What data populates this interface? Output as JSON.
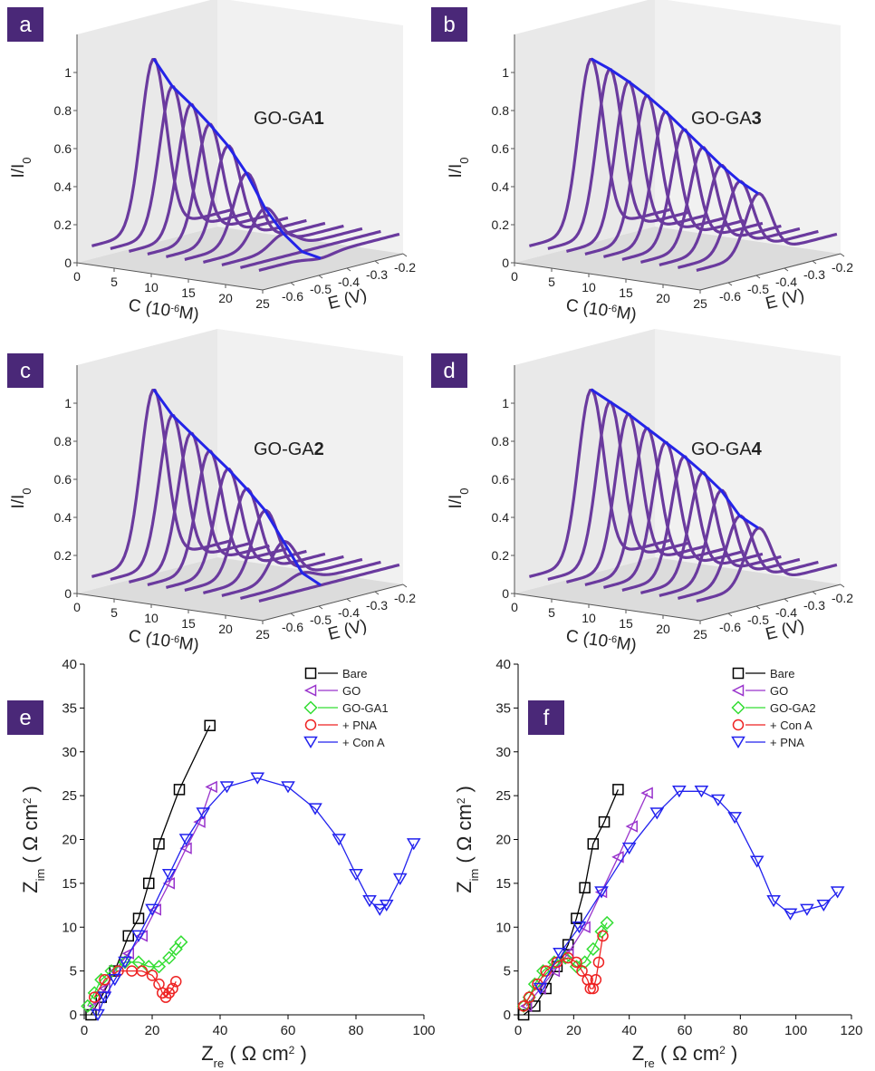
{
  "chart_data": [
    {
      "type": "waterfall3d",
      "panel": "a",
      "label": {
        "text": "GO-GA",
        "bold": "1"
      },
      "xlabel": {
        "text": "C (10",
        "sup": "-6",
        "end": "M)"
      },
      "ylabel": "E (V)",
      "zlabel": {
        "text": "I/I",
        "sub": "0"
      },
      "xlim": [
        0,
        25
      ],
      "xticks": [
        0,
        5,
        10,
        15,
        20,
        25
      ],
      "ylim": [
        -0.7,
        -0.2
      ],
      "yticks": [
        -0.6,
        -0.5,
        -0.4,
        -0.3,
        -0.2
      ],
      "zlim": [
        0,
        1.2
      ],
      "zticks": [
        0,
        0.2,
        0.4,
        0.6,
        0.8,
        1
      ],
      "envelope_color": "#2424e8",
      "series": [
        {
          "color": "#6a3a9e",
          "x": [
            2,
            4.5,
            7,
            9.5,
            12,
            14.5,
            17,
            19.5,
            22,
            24.5
          ],
          "values": [
            1,
            0.87,
            0.79,
            0.7,
            0.6,
            0.47,
            0.3,
            0.18,
            0.1,
            0.08
          ]
        }
      ]
    },
    {
      "type": "waterfall3d",
      "panel": "b",
      "label": {
        "text": "GO-GA",
        "bold": "3"
      },
      "xlabel": {
        "text": "C (10",
        "sup": "-6",
        "end": "M)"
      },
      "ylabel": "E (V)",
      "zlabel": {
        "text": "I/I",
        "sub": "0"
      },
      "xlim": [
        0,
        25
      ],
      "xticks": [
        0,
        5,
        10,
        15,
        20,
        25
      ],
      "ylim": [
        -0.7,
        -0.2
      ],
      "yticks": [
        -0.6,
        -0.5,
        -0.4,
        -0.3,
        -0.2
      ],
      "zlim": [
        0,
        1.2
      ],
      "zticks": [
        0,
        0.2,
        0.4,
        0.6,
        0.8,
        1
      ],
      "envelope_color": "#2424e8",
      "series": [
        {
          "color": "#6a3a9e",
          "x": [
            2,
            4.5,
            7,
            9.5,
            12,
            14.5,
            17,
            19.5,
            22,
            24.5
          ],
          "values": [
            1,
            0.96,
            0.91,
            0.85,
            0.78,
            0.7,
            0.62,
            0.54,
            0.47,
            0.42
          ]
        }
      ]
    },
    {
      "type": "waterfall3d",
      "panel": "c",
      "label": {
        "text": "GO-GA",
        "bold": "2"
      },
      "xlabel": {
        "text": "C (10",
        "sup": "-6",
        "end": "M)"
      },
      "ylabel": "E (V)",
      "zlabel": {
        "text": "I/I",
        "sub": "0"
      },
      "xlim": [
        0,
        25
      ],
      "xticks": [
        0,
        5,
        10,
        15,
        20,
        25
      ],
      "ylim": [
        -0.7,
        -0.2
      ],
      "yticks": [
        -0.6,
        -0.5,
        -0.4,
        -0.3,
        -0.2
      ],
      "zlim": [
        0,
        1.2
      ],
      "zticks": [
        0,
        0.2,
        0.4,
        0.6,
        0.8,
        1
      ],
      "envelope_color": "#2424e8",
      "series": [
        {
          "color": "#6a3a9e",
          "x": [
            2,
            4.5,
            7,
            9.5,
            12,
            14.5,
            17,
            19.5,
            22,
            24.5
          ],
          "values": [
            1,
            0.88,
            0.8,
            0.72,
            0.64,
            0.55,
            0.45,
            0.3,
            0.15,
            0.1
          ]
        }
      ]
    },
    {
      "type": "waterfall3d",
      "panel": "d",
      "label": {
        "text": "GO-GA",
        "bold": "4"
      },
      "xlabel": {
        "text": "C (10",
        "sup": "-6",
        "end": "M)"
      },
      "ylabel": "E (V)",
      "zlabel": {
        "text": "I/I",
        "sub": "0"
      },
      "xlim": [
        0,
        25
      ],
      "xticks": [
        0,
        5,
        10,
        15,
        20,
        25
      ],
      "ylim": [
        -0.7,
        -0.2
      ],
      "yticks": [
        -0.6,
        -0.5,
        -0.4,
        -0.3,
        -0.2
      ],
      "zlim": [
        0,
        1.2
      ],
      "zticks": [
        0,
        0.2,
        0.4,
        0.6,
        0.8,
        1
      ],
      "envelope_color": "#2424e8",
      "series": [
        {
          "color": "#6a3a9e",
          "x": [
            2,
            4.5,
            7,
            9.5,
            12,
            14.5,
            17,
            19.5,
            22,
            24.5
          ],
          "values": [
            1,
            0.95,
            0.9,
            0.84,
            0.78,
            0.72,
            0.65,
            0.57,
            0.45,
            0.4
          ]
        }
      ]
    },
    {
      "type": "scatter",
      "panel": "e",
      "xlabel": {
        "text": "Z",
        "sub": "re",
        "unit": " ( Ω cm",
        "sup": "2",
        "end": " )"
      },
      "ylabel": {
        "text": "Z",
        "sub": "im",
        "unit": " ( Ω cm",
        "sup": "2",
        "end": " )"
      },
      "xlim": [
        0,
        100
      ],
      "xticks": [
        0,
        20,
        40,
        60,
        80,
        100
      ],
      "ylim": [
        0,
        40
      ],
      "yticks": [
        0,
        5,
        10,
        15,
        20,
        25,
        30,
        35,
        40
      ],
      "series": [
        {
          "name": "Bare",
          "color": "#000000",
          "marker": "square",
          "x": [
            2,
            5,
            9,
            13,
            16,
            19,
            22,
            28,
            37
          ],
          "values": [
            0,
            2,
            5,
            9,
            11,
            15,
            19.5,
            25.7,
            33
          ]
        },
        {
          "name": "GO",
          "color": "#9933cc",
          "marker": "triangle-left",
          "x": [
            3,
            6,
            9,
            13,
            17,
            21,
            25,
            30,
            34,
            37.5
          ],
          "values": [
            1,
            3,
            5,
            7,
            9,
            12,
            15,
            19,
            22,
            26
          ]
        },
        {
          "name": "GO-GA1",
          "color": "#33dd33",
          "marker": "diamond",
          "x": [
            1,
            3,
            5,
            8,
            12,
            16,
            19,
            22,
            25,
            27,
            28.5
          ],
          "values": [
            1,
            2.5,
            4,
            5,
            6,
            6,
            5.5,
            5.5,
            6.5,
            7.5,
            8.3
          ]
        },
        {
          "name": "+ PNA",
          "color": "#ee2222",
          "marker": "circle",
          "x": [
            3,
            6,
            10,
            14,
            17,
            20,
            22,
            23,
            24,
            25,
            26,
            27
          ],
          "values": [
            2,
            4,
            5,
            5,
            5,
            4.5,
            3.5,
            2.5,
            2,
            2.5,
            3,
            3.8
          ]
        },
        {
          "name": "+ Con A",
          "color": "#2222ee",
          "marker": "triangle-down",
          "x": [
            4,
            6,
            9,
            12,
            16,
            20,
            25,
            30,
            35,
            42,
            51,
            60,
            68,
            75,
            80,
            84,
            87,
            89,
            93,
            97
          ],
          "values": [
            0,
            2,
            4,
            6,
            9,
            12,
            16,
            20,
            23,
            26,
            27,
            26,
            23.5,
            20,
            16,
            13,
            12,
            12.5,
            15.5,
            19.5
          ]
        }
      ]
    },
    {
      "type": "scatter",
      "panel": "f",
      "xlabel": {
        "text": "Z",
        "sub": "re",
        "unit": " ( Ω cm",
        "sup": "2",
        "end": " )"
      },
      "ylabel": {
        "text": "Z",
        "sub": "im",
        "unit": " ( Ω cm",
        "sup": "2",
        "end": " )"
      },
      "xlim": [
        0,
        120
      ],
      "xticks": [
        0,
        20,
        40,
        60,
        80,
        100,
        120
      ],
      "ylim": [
        0,
        40
      ],
      "yticks": [
        0,
        5,
        10,
        15,
        20,
        25,
        30,
        35,
        40
      ],
      "series": [
        {
          "name": "Bare",
          "color": "#000000",
          "marker": "square",
          "x": [
            2,
            6,
            10,
            14,
            18,
            21,
            24,
            27,
            31,
            36
          ],
          "values": [
            0,
            1,
            3,
            5.5,
            8,
            11,
            14.5,
            19.5,
            22,
            25.7
          ]
        },
        {
          "name": "GO",
          "color": "#9933cc",
          "marker": "triangle-left",
          "x": [
            3,
            8,
            13,
            18,
            24,
            30,
            36,
            41,
            46.5
          ],
          "values": [
            1,
            3,
            5,
            7,
            10,
            14,
            18,
            21.5,
            25.3
          ]
        },
        {
          "name": "GO-GA2",
          "color": "#33dd33",
          "marker": "diamond",
          "x": [
            2,
            4,
            6,
            9,
            13,
            17,
            21,
            24,
            27,
            30,
            32
          ],
          "values": [
            1,
            2,
            3.5,
            5,
            6,
            6.5,
            5.5,
            6,
            7.5,
            9.5,
            10.5
          ]
        },
        {
          "name": "+ Con A",
          "color": "#ee2222",
          "marker": "circle",
          "x": [
            2,
            4,
            7,
            10,
            14,
            18,
            21,
            23,
            25,
            26,
            27,
            28,
            29,
            30.5
          ],
          "values": [
            1,
            2,
            3.5,
            5,
            6,
            6.5,
            6,
            5,
            4,
            3,
            3,
            4,
            6,
            9
          ]
        },
        {
          "name": "+ PNA",
          "color": "#2222ee",
          "marker": "triangle-down",
          "x": [
            8,
            15,
            22,
            30,
            40,
            50,
            58,
            66,
            72,
            78,
            86,
            92,
            98,
            104,
            110,
            115
          ],
          "values": [
            3,
            7,
            10,
            14,
            19,
            23,
            25.5,
            25.5,
            24.5,
            22.5,
            17.5,
            13,
            11.5,
            12,
            12.5,
            14
          ]
        }
      ]
    }
  ]
}
